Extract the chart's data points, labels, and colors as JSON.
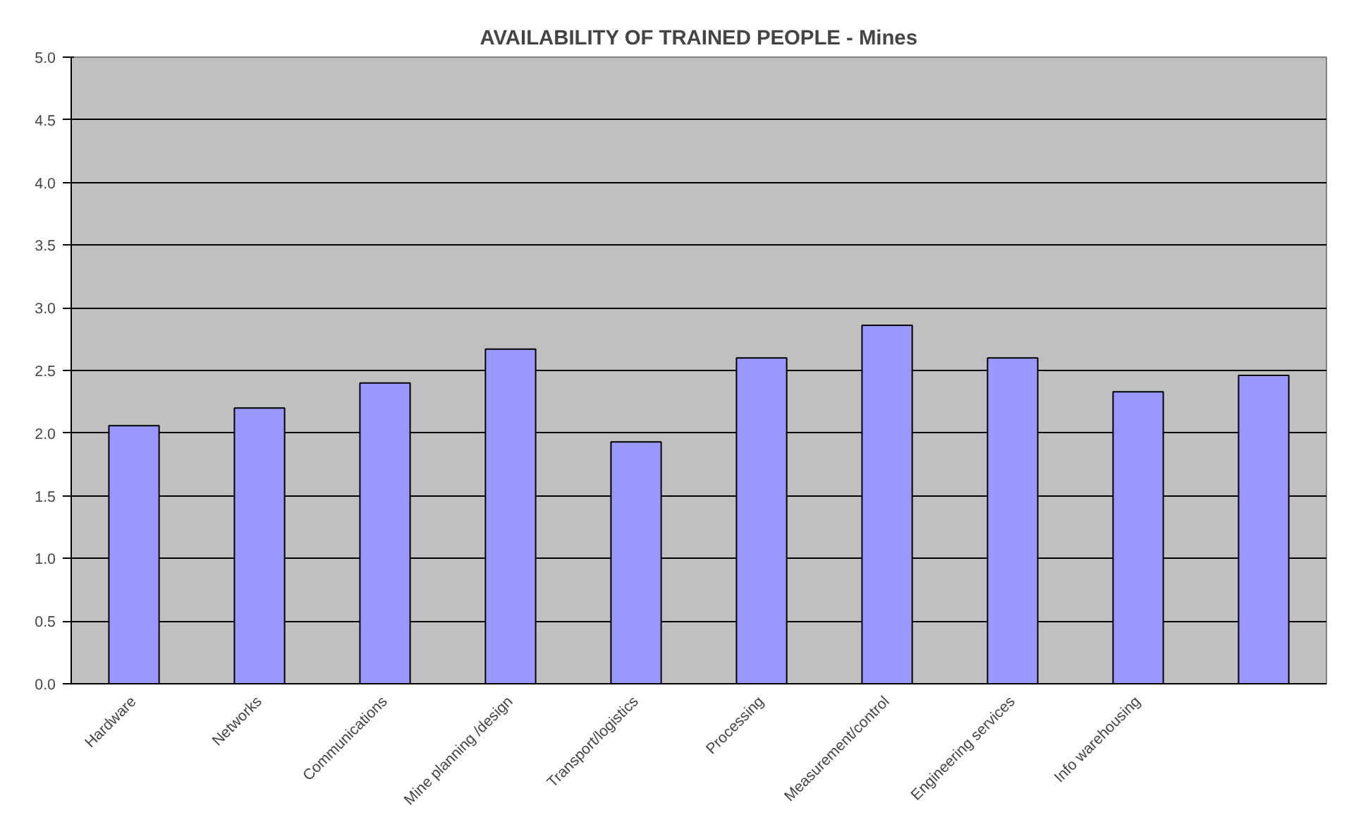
{
  "chart_data": {
    "type": "bar",
    "title": "AVAILABILITY OF TRAINED PEOPLE - Mines",
    "categories": [
      "Hardware",
      "Networks",
      "Communications",
      "Mine planning /design",
      "Transport/logistics",
      "Processing",
      "Measurement/control",
      "Engineering services",
      "Info warehousing",
      null
    ],
    "values": [
      2.06,
      2.2,
      2.4,
      2.67,
      1.93,
      2.6,
      2.86,
      2.6,
      2.33,
      2.46
    ],
    "color": "#9999ff",
    "ylim": [
      0,
      5
    ],
    "yticks": [
      {
        "value": 0,
        "label": "0.0"
      },
      0.5,
      {
        "value": 1,
        "label": "1.0"
      },
      1.5,
      {
        "value": 2,
        "label": "2.0"
      },
      2.5,
      {
        "value": 3,
        "label": "3.0"
      },
      3.5,
      {
        "value": 4,
        "label": "4.0"
      },
      4.5,
      {
        "value": 5,
        "label": "5.0"
      }
    ],
    "grid": "y"
  }
}
